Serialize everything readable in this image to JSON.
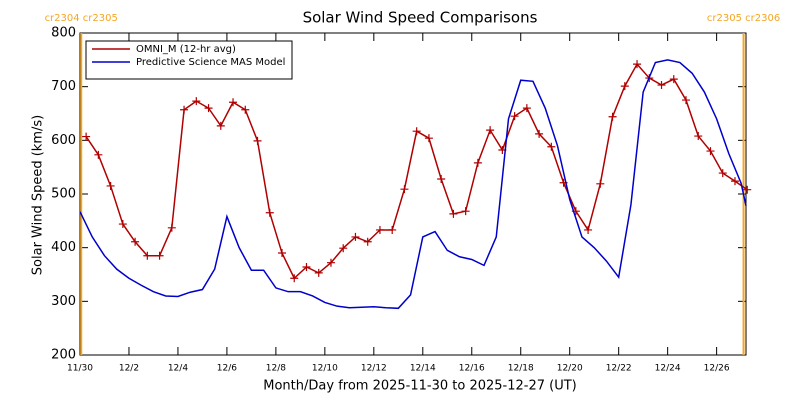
{
  "chart_data": {
    "type": "line",
    "title": "Solar Wind Speed Comparisons",
    "xlabel": "Month/Day from 2025-11-30 to 2025-12-27 (UT)",
    "ylabel": "Solar Wind Speed (km/s)",
    "xlim": [
      0,
      27.2
    ],
    "ylim": [
      200,
      800
    ],
    "xticks": [
      {
        "value": 0,
        "label": "11/30"
      },
      {
        "value": 2,
        "label": "12/2"
      },
      {
        "value": 4,
        "label": "12/4"
      },
      {
        "value": 6,
        "label": "12/6"
      },
      {
        "value": 8,
        "label": "12/8"
      },
      {
        "value": 10,
        "label": "12/10"
      },
      {
        "value": 12,
        "label": "12/12"
      },
      {
        "value": 14,
        "label": "12/14"
      },
      {
        "value": 16,
        "label": "12/16"
      },
      {
        "value": 18,
        "label": "12/18"
      },
      {
        "value": 20,
        "label": "12/20"
      },
      {
        "value": 22,
        "label": "12/22"
      },
      {
        "value": 24,
        "label": "12/24"
      },
      {
        "value": 26,
        "label": "12/26"
      }
    ],
    "yticks": [
      200,
      300,
      400,
      500,
      600,
      700,
      800
    ],
    "legend": "upper left",
    "annotations": [
      {
        "text": "cr2304 cr2305",
        "x": 0.05,
        "color": "#f5a623"
      },
      {
        "text": "cr2305 cr2306",
        "x": 27.1,
        "color": "#f5a623"
      }
    ],
    "series": [
      {
        "name": "OMNI_M (12-hr avg)",
        "color": "#b00000",
        "marker": "+",
        "x": [
          0.25,
          0.75,
          1.25,
          1.75,
          2.25,
          2.75,
          3.25,
          3.75,
          4.25,
          4.75,
          5.25,
          5.75,
          6.25,
          6.75,
          7.25,
          7.75,
          8.25,
          8.75,
          9.25,
          9.75,
          10.25,
          10.75,
          11.25,
          11.75,
          12.25,
          12.75,
          13.25,
          13.75,
          14.25,
          14.75,
          15.25,
          15.75,
          16.25,
          16.75,
          17.25,
          17.75,
          18.25,
          18.75,
          19.25,
          19.75,
          20.25,
          20.75,
          21.25,
          21.75,
          22.25,
          22.75,
          23.25,
          23.75,
          24.25,
          24.75,
          25.25,
          25.75,
          26.25,
          26.75,
          27.25
        ],
        "values": [
          607,
          573,
          515,
          444,
          411,
          385,
          385,
          437,
          657,
          673,
          660,
          627,
          671,
          657,
          599,
          465,
          390,
          343,
          364,
          353,
          372,
          399,
          420,
          411,
          433,
          433,
          509,
          617,
          604,
          528,
          463,
          468,
          558,
          619,
          582,
          645,
          660,
          612,
          588,
          521,
          468,
          433,
          519,
          644,
          701,
          742,
          716,
          703,
          714,
          675,
          608,
          580,
          539,
          524,
          508
        ]
      },
      {
        "name": "Predictive Science MAS Model",
        "color": "#0000cc",
        "x": [
          0,
          0.5,
          1,
          1.5,
          2,
          2.5,
          3,
          3.5,
          4,
          4.5,
          5,
          5.5,
          6,
          6.5,
          7,
          7.5,
          8,
          8.5,
          9,
          9.5,
          10,
          10.5,
          11,
          11.5,
          12,
          12.5,
          13,
          13.5,
          14,
          14.5,
          15,
          15.5,
          16,
          16.5,
          17,
          17.5,
          18,
          18.5,
          19,
          19.5,
          20,
          20.5,
          21,
          21.5,
          22,
          22.5,
          23,
          23.5,
          24,
          24.5,
          25,
          25.5,
          26,
          26.5,
          27,
          27.2
        ],
        "values": [
          467,
          420,
          385,
          360,
          343,
          330,
          318,
          310,
          309,
          317,
          322,
          360,
          458,
          400,
          358,
          358,
          325,
          318,
          318,
          310,
          298,
          291,
          288,
          289,
          290,
          288,
          287,
          312,
          420,
          430,
          395,
          383,
          378,
          367,
          420,
          640,
          712,
          710,
          660,
          590,
          490,
          420,
          400,
          375,
          345,
          480,
          690,
          745,
          750,
          745,
          725,
          690,
          640,
          575,
          520,
          478
        ]
      }
    ]
  }
}
